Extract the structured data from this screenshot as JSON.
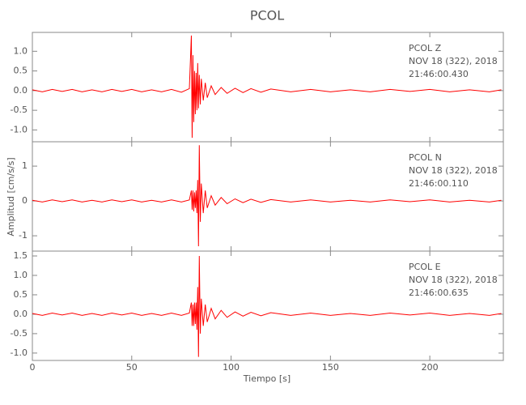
{
  "figure": {
    "title": "PCOL",
    "xlabel": "Tiempo [s]",
    "ylabel": "Amplitud [cm/s/s]"
  },
  "chart_data": [
    {
      "type": "line",
      "color": "#ff0000",
      "annotations": [
        "PCOL   Z",
        "NOV 18 (322), 2018",
        "21:46:00.430"
      ],
      "x": [
        0,
        5,
        10,
        15,
        20,
        25,
        30,
        35,
        40,
        45,
        50,
        55,
        60,
        65,
        70,
        75,
        79,
        80,
        80.4,
        80.8,
        81.2,
        81.6,
        82,
        82.4,
        82.8,
        83.2,
        83.6,
        84,
        84.5,
        85,
        86,
        87,
        88,
        90,
        92,
        95,
        98,
        102,
        106,
        110,
        115,
        120,
        130,
        140,
        150,
        160,
        170,
        180,
        190,
        200,
        210,
        220,
        230,
        236
      ],
      "values": [
        0.02,
        -0.03,
        0.03,
        -0.02,
        0.03,
        -0.03,
        0.02,
        -0.03,
        0.03,
        -0.02,
        0.03,
        -0.03,
        0.02,
        -0.03,
        0.03,
        -0.04,
        0.05,
        1.4,
        -1.2,
        0.9,
        -0.8,
        0.5,
        -0.6,
        0.45,
        -0.5,
        0.7,
        -0.45,
        0.4,
        -0.35,
        0.3,
        -0.25,
        0.2,
        -0.18,
        0.12,
        -0.1,
        0.08,
        -0.07,
        0.06,
        -0.05,
        0.05,
        -0.04,
        0.04,
        -0.03,
        0.03,
        -0.03,
        0.02,
        -0.03,
        0.03,
        -0.02,
        0.03,
        -0.03,
        0.02,
        -0.03,
        0.02
      ],
      "xlim": [
        0,
        237
      ],
      "xticks": [
        0,
        50,
        100,
        150,
        200
      ],
      "ylim": [
        -1.3,
        1.48
      ],
      "yticks": [
        {
          "value": -1.0,
          "label": "-1.0"
        },
        -0.5,
        {
          "value": 0.0,
          "label": "0.0"
        },
        0.5,
        {
          "value": 1.0,
          "label": "1.0"
        }
      ]
    },
    {
      "type": "line",
      "color": "#ff0000",
      "annotations": [
        "PCOL   N",
        "NOV 18 (322), 2018",
        "21:46:00.110"
      ],
      "x": [
        0,
        5,
        10,
        15,
        20,
        25,
        30,
        35,
        40,
        45,
        50,
        55,
        60,
        65,
        70,
        75,
        79,
        80,
        80.4,
        80.8,
        81.2,
        81.6,
        82,
        82.4,
        82.8,
        83.2,
        83.6,
        84,
        84.5,
        85,
        86,
        87,
        88,
        90,
        92,
        95,
        98,
        102,
        106,
        110,
        115,
        120,
        130,
        140,
        150,
        160,
        170,
        180,
        190,
        200,
        210,
        220,
        230,
        236
      ],
      "values": [
        0.02,
        -0.03,
        0.03,
        -0.02,
        0.03,
        -0.03,
        0.02,
        -0.03,
        0.03,
        -0.02,
        0.03,
        -0.03,
        0.02,
        -0.03,
        0.03,
        -0.03,
        0.03,
        0.3,
        -0.25,
        0.3,
        -0.3,
        0.25,
        -0.2,
        0.3,
        -0.35,
        0.6,
        -1.3,
        1.6,
        -0.6,
        0.5,
        -0.35,
        0.3,
        -0.2,
        0.15,
        -0.12,
        0.1,
        -0.08,
        0.06,
        -0.05,
        0.05,
        -0.04,
        0.04,
        -0.03,
        0.03,
        -0.03,
        0.02,
        -0.03,
        0.03,
        -0.02,
        0.03,
        -0.03,
        0.02,
        -0.03,
        0.02
      ],
      "xlim": [
        0,
        237
      ],
      "xticks": [
        0,
        50,
        100,
        150,
        200
      ],
      "ylim": [
        -1.44,
        1.7
      ],
      "yticks": [
        -1,
        0,
        1
      ]
    },
    {
      "type": "line",
      "color": "#ff0000",
      "annotations": [
        "PCOL   E",
        "NOV 18 (322), 2018",
        "21:46:00.635"
      ],
      "x": [
        0,
        5,
        10,
        15,
        20,
        25,
        30,
        35,
        40,
        45,
        50,
        55,
        60,
        65,
        70,
        75,
        79,
        80,
        80.4,
        80.8,
        81.2,
        81.6,
        82,
        82.4,
        82.8,
        83.2,
        83.6,
        84,
        84.5,
        85,
        86,
        87,
        88,
        90,
        92,
        95,
        98,
        102,
        106,
        110,
        115,
        120,
        130,
        140,
        150,
        160,
        170,
        180,
        190,
        200,
        210,
        220,
        230,
        236
      ],
      "values": [
        0.02,
        -0.03,
        0.03,
        -0.02,
        0.03,
        -0.03,
        0.02,
        -0.03,
        0.03,
        -0.02,
        0.03,
        -0.03,
        0.02,
        -0.03,
        0.03,
        -0.03,
        0.03,
        0.3,
        -0.3,
        0.25,
        -0.3,
        0.3,
        -0.25,
        0.3,
        -0.4,
        0.7,
        -1.1,
        1.5,
        -0.5,
        0.4,
        -0.3,
        0.25,
        -0.2,
        0.15,
        -0.12,
        0.1,
        -0.08,
        0.06,
        -0.05,
        0.05,
        -0.04,
        0.04,
        -0.03,
        0.03,
        -0.03,
        0.02,
        -0.03,
        0.03,
        -0.02,
        0.03,
        -0.03,
        0.02,
        -0.03,
        0.02
      ],
      "xlim": [
        0,
        237
      ],
      "xticks": [
        0,
        50,
        100,
        150,
        200
      ],
      "ylim": [
        -1.19,
        1.625
      ],
      "yticks": [
        {
          "value": -1.0,
          "label": "-1.0"
        },
        -0.5,
        {
          "value": 0.0,
          "label": "0.0"
        },
        0.5,
        {
          "value": 1.0,
          "label": "1.0"
        },
        1.5
      ]
    }
  ]
}
